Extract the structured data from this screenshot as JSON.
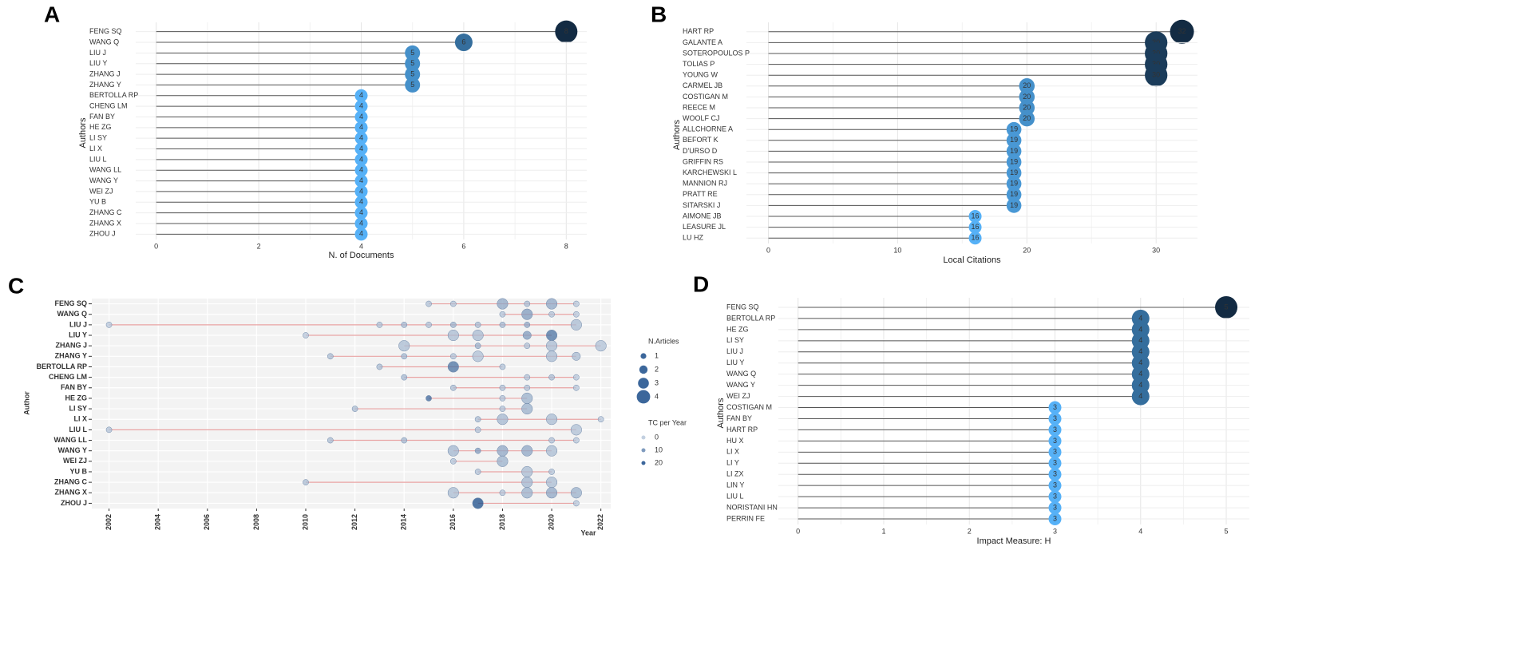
{
  "chart_data": [
    {
      "type": "lollipop",
      "panel_label": "A",
      "x_label": "N. of Documents",
      "y_label": "Authors",
      "categories": [
        "FENG SQ",
        "WANG Q",
        "LIU J",
        "LIU Y",
        "ZHANG J",
        "ZHANG Y",
        "BERTOLLA RP",
        "CHENG LM",
        "FAN BY",
        "HE ZG",
        "LI SY",
        "LI X",
        "LIU L",
        "WANG LL",
        "WANG Y",
        "WEI ZJ",
        "YU B",
        "ZHANG C",
        "ZHANG X",
        "ZHOU J"
      ],
      "values": [
        8,
        6,
        5,
        5,
        5,
        5,
        4,
        4,
        4,
        4,
        4,
        4,
        4,
        4,
        4,
        4,
        4,
        4,
        4,
        4
      ],
      "xlim": [
        -0.4,
        8.4
      ],
      "xticks": [
        0,
        2,
        4,
        6,
        8
      ],
      "grid": true,
      "color_low": "#56b1f7",
      "color_high": "#132b43"
    },
    {
      "type": "lollipop",
      "panel_label": "B",
      "x_label": "Local Citations",
      "y_label": "Authors",
      "categories": [
        "HART RP",
        "GALANTE A",
        "SOTEROPOULOS P",
        "TOLIAS P",
        "YOUNG W",
        "CARMEL JB",
        "COSTIGAN M",
        "REECE M",
        "WOOLF CJ",
        "ALLCHORNE A",
        "BEFORT K",
        "D'URSO D",
        "GRIFFIN RS",
        "KARCHEWSKI L",
        "MANNION RJ",
        "PRATT RE",
        "SITARSKI J",
        "AIMONE JB",
        "LEASURE JL",
        "LU HZ"
      ],
      "values": [
        32,
        30,
        30,
        30,
        30,
        20,
        20,
        20,
        20,
        19,
        19,
        19,
        19,
        19,
        19,
        19,
        19,
        16,
        16,
        16
      ],
      "xlim": [
        -1.7,
        33.2
      ],
      "xticks": [
        0,
        10,
        20,
        30
      ],
      "grid": true,
      "color_low": "#56b1f7",
      "color_high": "#132b43"
    },
    {
      "type": "timeline",
      "panel_label": "C",
      "x_label": "Year",
      "y_label": "Author",
      "series": [
        {
          "name": "FENG SQ",
          "x": [
            2015,
            2016,
            2018,
            2019,
            2020,
            2021
          ],
          "values": [
            1,
            1,
            3,
            1,
            3,
            1
          ],
          "tc_per_year": [
            3,
            3,
            8,
            4,
            8,
            2
          ]
        },
        {
          "name": "WANG Q",
          "x": [
            2018,
            2019,
            2020,
            2021
          ],
          "values": [
            1,
            3,
            1,
            1
          ],
          "tc_per_year": [
            3,
            10,
            3,
            2
          ]
        },
        {
          "name": "LIU J",
          "x": [
            2002,
            2013,
            2014,
            2015,
            2016,
            2017,
            2018,
            2019,
            2021
          ],
          "values": [
            1,
            1,
            1,
            1,
            1,
            1,
            1,
            1,
            3
          ],
          "tc_per_year": [
            2,
            3,
            5,
            3,
            6,
            4,
            5,
            8,
            4
          ]
        },
        {
          "name": "LIU Y",
          "x": [
            2010,
            2016,
            2017,
            2019,
            2020
          ],
          "values": [
            1,
            3,
            3,
            2,
            3
          ],
          "tc_per_year": [
            2,
            4,
            4,
            10,
            18
          ]
        },
        {
          "name": "ZHANG J",
          "x": [
            2014,
            2017,
            2019,
            2020,
            2022
          ],
          "values": [
            3,
            1,
            1,
            3,
            3
          ],
          "tc_per_year": [
            4,
            6,
            3,
            4,
            3
          ]
        },
        {
          "name": "ZHANG Y",
          "x": [
            2011,
            2014,
            2016,
            2017,
            2020,
            2021
          ],
          "values": [
            1,
            1,
            1,
            3,
            3,
            2
          ],
          "tc_per_year": [
            4,
            5,
            3,
            3,
            4,
            4
          ]
        },
        {
          "name": "BERTOLLA RP",
          "x": [
            2013,
            2016,
            2018
          ],
          "values": [
            1,
            3,
            1
          ],
          "tc_per_year": [
            4,
            18,
            3
          ]
        },
        {
          "name": "CHENG LM",
          "x": [
            2014,
            2019,
            2020,
            2021
          ],
          "values": [
            1,
            1,
            1,
            1
          ],
          "tc_per_year": [
            5,
            3,
            4,
            2
          ]
        },
        {
          "name": "FAN BY",
          "x": [
            2016,
            2018,
            2019,
            2021
          ],
          "values": [
            1,
            1,
            1,
            1
          ],
          "tc_per_year": [
            4,
            3,
            3,
            2
          ]
        },
        {
          "name": "HE ZG",
          "x": [
            2015,
            2018,
            2019
          ],
          "values": [
            1,
            1,
            3
          ],
          "tc_per_year": [
            20,
            3,
            6
          ]
        },
        {
          "name": "LI SY",
          "x": [
            2012,
            2018,
            2019
          ],
          "values": [
            1,
            1,
            3
          ],
          "tc_per_year": [
            4,
            3,
            6
          ]
        },
        {
          "name": "LI X",
          "x": [
            2017,
            2018,
            2020,
            2022
          ],
          "values": [
            1,
            3,
            3,
            1
          ],
          "tc_per_year": [
            4,
            5,
            4,
            2
          ]
        },
        {
          "name": "LIU L",
          "x": [
            2002,
            2017,
            2021
          ],
          "values": [
            1,
            1,
            3
          ],
          "tc_per_year": [
            3,
            3,
            3
          ]
        },
        {
          "name": "WANG LL",
          "x": [
            2011,
            2014,
            2020,
            2021
          ],
          "values": [
            1,
            1,
            1,
            1
          ],
          "tc_per_year": [
            4,
            5,
            3,
            2
          ]
        },
        {
          "name": "WANG Y",
          "x": [
            2016,
            2017,
            2018,
            2019,
            2020
          ],
          "values": [
            3,
            1,
            3,
            3,
            3
          ],
          "tc_per_year": [
            5,
            10,
            8,
            8,
            4
          ]
        },
        {
          "name": "WEI ZJ",
          "x": [
            2016,
            2018
          ],
          "values": [
            1,
            3
          ],
          "tc_per_year": [
            3,
            6
          ]
        },
        {
          "name": "YU B",
          "x": [
            2017,
            2019,
            2020
          ],
          "values": [
            1,
            3,
            1
          ],
          "tc_per_year": [
            3,
            4,
            3
          ]
        },
        {
          "name": "ZHANG C",
          "x": [
            2010,
            2019,
            2020
          ],
          "values": [
            1,
            3,
            3
          ],
          "tc_per_year": [
            4,
            5,
            4
          ]
        },
        {
          "name": "ZHANG X",
          "x": [
            2016,
            2018,
            2019,
            2020,
            2021
          ],
          "values": [
            3,
            1,
            3,
            3,
            3
          ],
          "tc_per_year": [
            4,
            3,
            6,
            8,
            6
          ]
        },
        {
          "name": "ZHOU J",
          "x": [
            2017,
            2021
          ],
          "values": [
            3,
            1
          ],
          "tc_per_year": [
            25,
            2
          ]
        }
      ],
      "xlim": [
        2001.3,
        2022.4
      ],
      "xticks": [
        2002,
        2004,
        2006,
        2008,
        2010,
        2012,
        2014,
        2016,
        2018,
        2020,
        2022
      ],
      "grid": true,
      "line_color": "#e8a3a3",
      "color_low": "#c3d0e0",
      "color_high": "#1a4c8a",
      "size_legend": {
        "title": "N.Articles",
        "values": [
          1,
          2,
          3,
          4
        ]
      },
      "color_legend": {
        "title": "TC per Year",
        "values": [
          0,
          10,
          20
        ]
      }
    },
    {
      "type": "lollipop",
      "panel_label": "D",
      "x_label": "Impact Measure: H",
      "y_label": "Authors",
      "categories": [
        "FENG SQ",
        "BERTOLLA RP",
        "HE ZG",
        "LI SY",
        "LIU J",
        "LIU Y",
        "WANG Q",
        "WANG Y",
        "WEI ZJ",
        "COSTIGAN M",
        "FAN BY",
        "HART RP",
        "HU X",
        "LI X",
        "LI Y",
        "LI ZX",
        "LIN Y",
        "LIU L",
        "NORISTANI HN",
        "PERRIN FE"
      ],
      "values": [
        5,
        4,
        4,
        4,
        4,
        4,
        4,
        4,
        4,
        3,
        3,
        3,
        3,
        3,
        3,
        3,
        3,
        3,
        3,
        3
      ],
      "xlim": [
        -0.23,
        5.27
      ],
      "xticks": [
        0,
        1,
        2,
        3,
        4,
        5
      ],
      "grid": true,
      "color_low": "#56b1f7",
      "color_high": "#132b43"
    }
  ]
}
